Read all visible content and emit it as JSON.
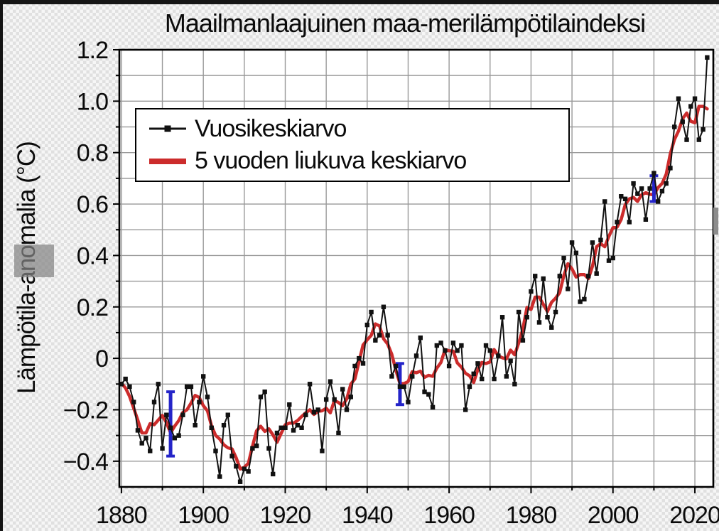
{
  "window": {
    "background": "transparency-checkerboard",
    "top_edge_color": "#151515",
    "left_edge_color": "#151515"
  },
  "chart_data": {
    "type": "line",
    "title": "Maailmanlaajuinen maa-merilämpötilaindeksi",
    "ylabel": "Lämpötila-anomalia (°C)",
    "xlabel": "",
    "x_domain": [
      1879.5,
      2024.5
    ],
    "y_domain": [
      -0.5,
      1.2
    ],
    "xticks": {
      "values": [
        1880,
        1900,
        1920,
        1940,
        1960,
        1980,
        2000,
        2020
      ],
      "labels": [
        "1880",
        "1900",
        "1920",
        "1940",
        "1960",
        "1980",
        "2000",
        "2020"
      ]
    },
    "yticks": {
      "values": [
        1.2,
        1.0,
        0.8,
        0.6,
        0.4,
        0.2,
        0,
        -0.2,
        -0.4
      ],
      "labels": [
        "1.2",
        "1.0",
        "0.8",
        "0.6",
        "0.4",
        "0.2",
        "0",
        "−0.2",
        "−0.4"
      ]
    },
    "grid": {
      "x_step_years": 10,
      "y_step": 0.1,
      "color": "#999999",
      "plot_background": "#ffffff",
      "border_color": "#000000"
    },
    "legend": {
      "position": "top-left",
      "items": [
        {
          "label": "Vuosikeskiarvo",
          "color": "#111111",
          "line": "thin",
          "marker": "square"
        },
        {
          "label": "5 vuoden liukuva keskiarvo",
          "color": "#cc2c2c",
          "line": "thick",
          "marker": "none"
        }
      ]
    },
    "series": [
      {
        "name": "Vuosikeskiarvo",
        "color": "#111111",
        "start_year": 1880,
        "values": [
          -0.1,
          -0.08,
          -0.11,
          -0.17,
          -0.28,
          -0.33,
          -0.31,
          -0.36,
          -0.17,
          -0.1,
          -0.35,
          -0.22,
          -0.27,
          -0.31,
          -0.3,
          -0.22,
          -0.11,
          -0.11,
          -0.26,
          -0.17,
          -0.07,
          -0.15,
          -0.27,
          -0.36,
          -0.46,
          -0.26,
          -0.22,
          -0.38,
          -0.42,
          -0.48,
          -0.43,
          -0.44,
          -0.35,
          -0.34,
          -0.15,
          -0.13,
          -0.35,
          -0.45,
          -0.29,
          -0.27,
          -0.27,
          -0.18,
          -0.28,
          -0.26,
          -0.27,
          -0.22,
          -0.1,
          -0.21,
          -0.2,
          -0.36,
          -0.16,
          -0.09,
          -0.16,
          -0.29,
          -0.12,
          -0.2,
          -0.15,
          -0.03,
          0.0,
          -0.02,
          0.13,
          0.18,
          0.07,
          0.09,
          0.2,
          0.09,
          -0.07,
          -0.03,
          -0.11,
          -0.11,
          -0.17,
          -0.07,
          0.01,
          0.08,
          -0.13,
          -0.14,
          -0.19,
          0.05,
          0.06,
          0.03,
          -0.03,
          0.06,
          0.03,
          0.05,
          -0.2,
          -0.11,
          -0.06,
          -0.02,
          -0.08,
          0.05,
          0.03,
          -0.08,
          0.01,
          0.16,
          -0.07,
          -0.01,
          -0.1,
          0.18,
          0.07,
          0.16,
          0.26,
          0.32,
          0.14,
          0.31,
          0.16,
          0.12,
          0.18,
          0.32,
          0.39,
          0.27,
          0.45,
          0.41,
          0.22,
          0.23,
          0.32,
          0.45,
          0.33,
          0.46,
          0.61,
          0.38,
          0.39,
          0.53,
          0.63,
          0.62,
          0.53,
          0.68,
          0.64,
          0.66,
          0.54,
          0.66,
          0.72,
          0.61,
          0.65,
          0.68,
          0.74,
          0.9,
          1.01,
          0.92,
          0.85,
          0.98,
          1.01,
          0.85,
          0.89,
          1.17
        ]
      },
      {
        "name": "5 vuoden liukuva keskiarvo",
        "color": "#cc2c2c",
        "derived_from": "Vuosikeskiarvo",
        "window_years": 5
      }
    ],
    "error_bars": {
      "color": "#2424c8",
      "points": [
        {
          "year": 1892,
          "low": -0.38,
          "high": -0.13
        },
        {
          "year": 1948,
          "low": -0.18,
          "high": -0.02
        },
        {
          "year": 2010,
          "low": 0.61,
          "high": 0.71
        }
      ]
    }
  }
}
